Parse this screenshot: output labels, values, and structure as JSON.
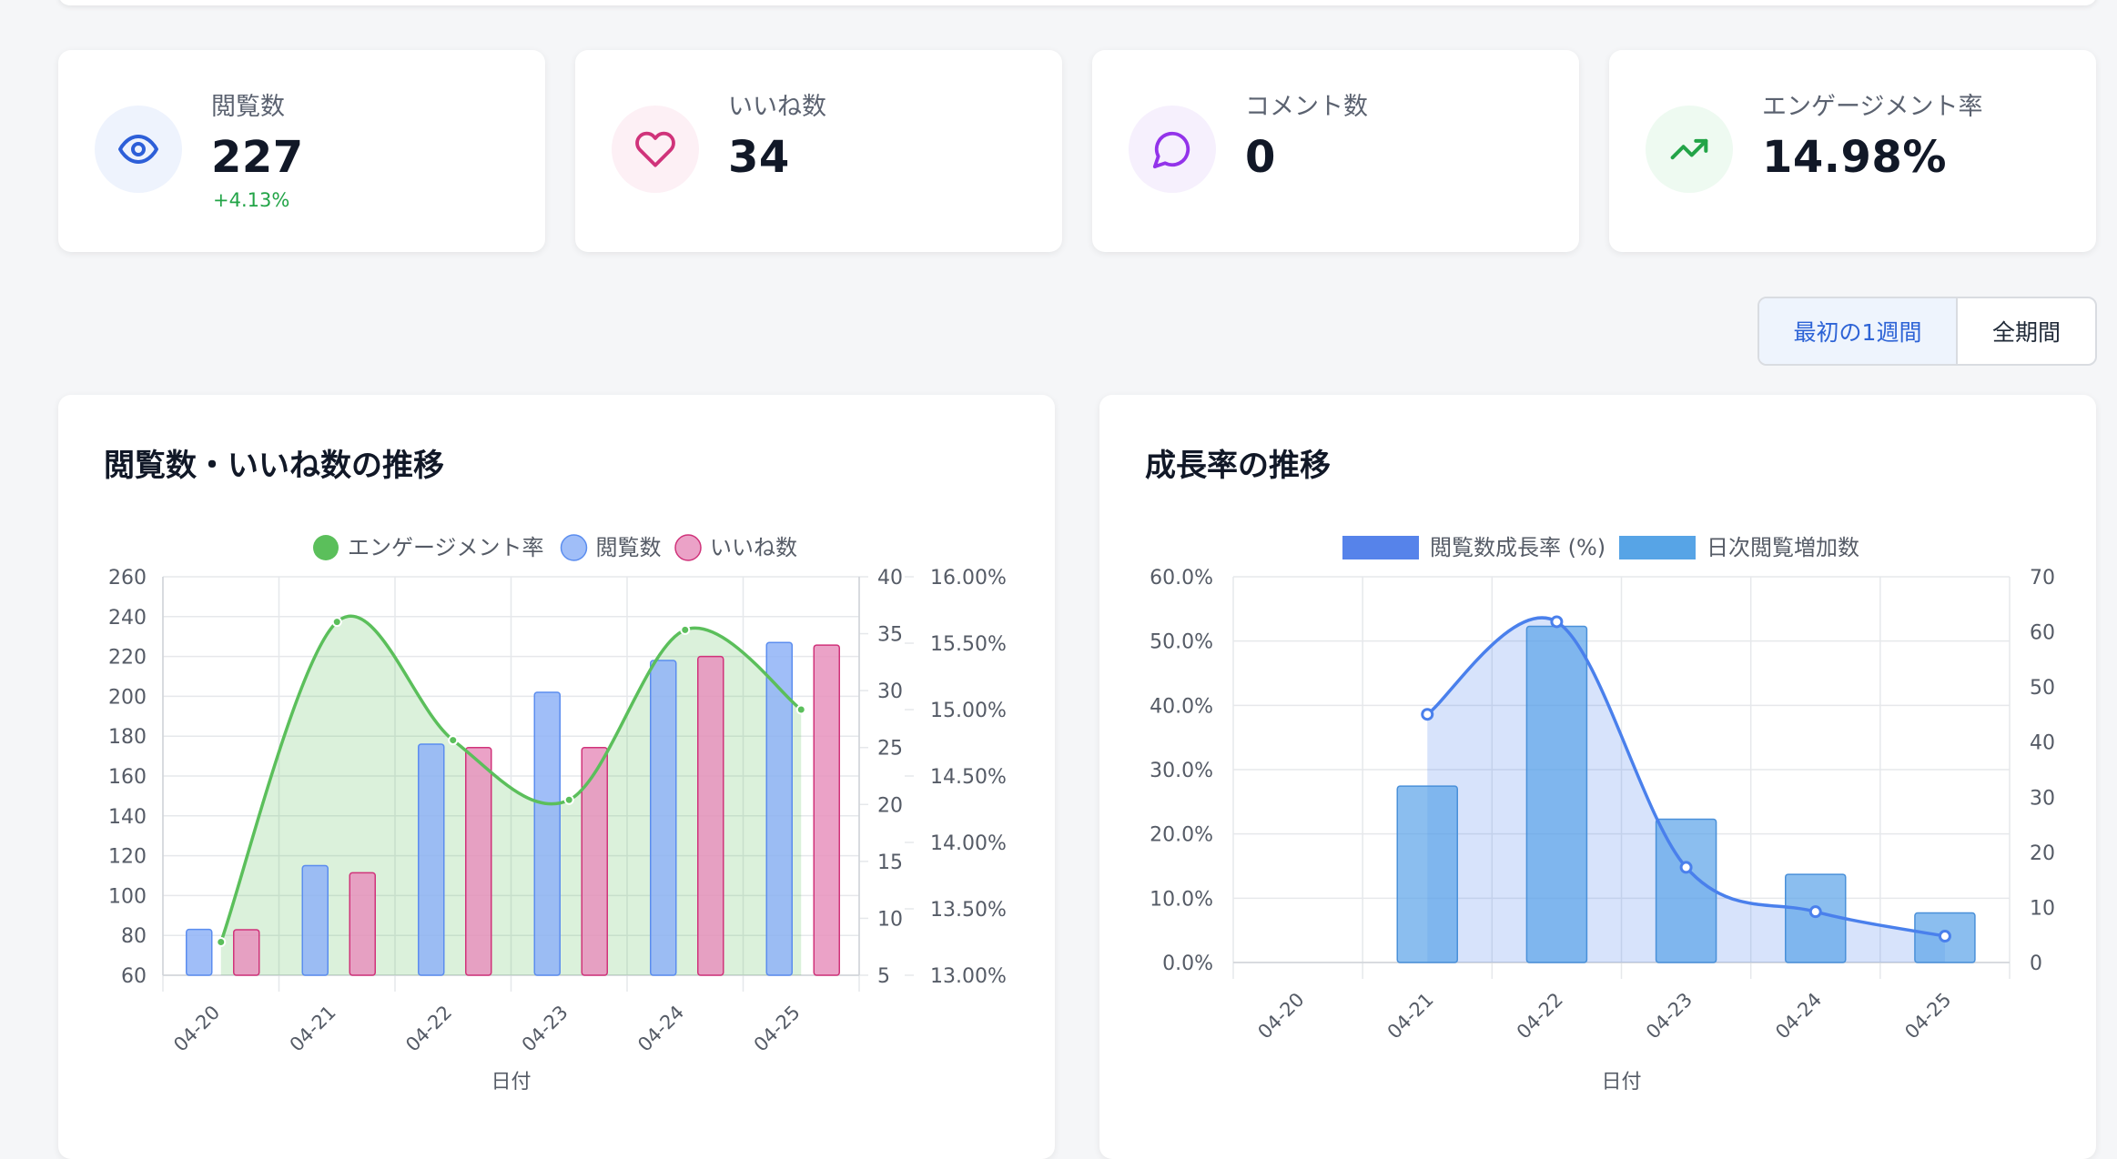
{
  "stats": [
    {
      "label": "閲覧数",
      "value": "227",
      "change": "+4.13%",
      "icon": "eye-icon",
      "icon_color": "#2d5fd8",
      "icon_bg": "#eef3fd"
    },
    {
      "label": "いいね数",
      "value": "34",
      "change": "",
      "icon": "heart-icon",
      "icon_color": "#d0337a",
      "icon_bg": "#fdf0f5"
    },
    {
      "label": "コメント数",
      "value": "0",
      "change": "",
      "icon": "chat-bubble-icon",
      "icon_color": "#9333ea",
      "icon_bg": "#f6f0fd"
    },
    {
      "label": "エンゲージメント率",
      "value": "14.98%",
      "change": "",
      "icon": "trending-up-icon",
      "icon_color": "#22a447",
      "icon_bg": "#eefaf1"
    }
  ],
  "period": {
    "first_week": "最初の1週間",
    "all": "全期間",
    "selected": "first_week"
  },
  "charts": {
    "views_likes_title": "閲覧数・いいね数の推移",
    "growth_title": "成長率の推移"
  },
  "chart_data": [
    {
      "type": "bar",
      "title": "閲覧数・いいね数の推移",
      "categories": [
        "04-20",
        "04-21",
        "04-22",
        "04-23",
        "04-24",
        "04-25"
      ],
      "xlabel": "日付",
      "legend_position": "top",
      "grid": true,
      "y_left": {
        "ticks": [
          "260",
          "240",
          "220",
          "200",
          "180",
          "160",
          "140",
          "120",
          "100",
          "80",
          "60"
        ],
        "range": [
          60,
          260
        ]
      },
      "y_right1": {
        "ticks": [
          "40",
          "35",
          "30",
          "25",
          "20",
          "15",
          "10",
          "5"
        ],
        "range": [
          5,
          40
        ]
      },
      "y_right2": {
        "ticks": [
          "16.00%",
          "15.50%",
          "15.00%",
          "14.50%",
          "14.00%",
          "13.50%",
          "13.00%"
        ],
        "range": [
          13.0,
          16.0
        ]
      },
      "series": [
        {
          "name": "エンゲージメント率",
          "type": "area",
          "axis": "y_right2",
          "color": "#5bbf5b",
          "values": [
            13.25,
            15.66,
            14.77,
            14.32,
            15.6,
            15.0
          ]
        },
        {
          "name": "閲覧数",
          "type": "bar",
          "axis": "y_left",
          "color": "#8fb3f7",
          "values": [
            83,
            115,
            176,
            202,
            218,
            227
          ]
        },
        {
          "name": "いいね数",
          "type": "bar",
          "axis": "y_right1",
          "color": "#e892bd",
          "values": [
            9,
            14,
            25,
            25,
            33,
            34
          ]
        }
      ]
    },
    {
      "type": "bar",
      "title": "成長率の推移",
      "categories": [
        "04-20",
        "04-21",
        "04-22",
        "04-23",
        "04-24",
        "04-25"
      ],
      "xlabel": "日付",
      "legend_position": "top",
      "grid": true,
      "y_left": {
        "ticks": [
          "60.0%",
          "50.0%",
          "40.0%",
          "30.0%",
          "20.0%",
          "10.0%",
          "0.0%"
        ],
        "range": [
          0,
          60
        ]
      },
      "y_right": {
        "ticks": [
          "70",
          "60",
          "50",
          "40",
          "30",
          "20",
          "10",
          "0"
        ],
        "range": [
          0,
          70
        ]
      },
      "series": [
        {
          "name": "閲覧数成長率 (%)",
          "type": "area",
          "axis": "y_left",
          "color": "#4a80ec",
          "values": [
            null,
            38.6,
            53.0,
            14.8,
            7.9,
            4.1
          ]
        },
        {
          "name": "日次閲覧増加数",
          "type": "bar",
          "axis": "y_right",
          "color": "#5aa3e8",
          "values": [
            0,
            32,
            61,
            26,
            16,
            9
          ]
        }
      ]
    }
  ]
}
